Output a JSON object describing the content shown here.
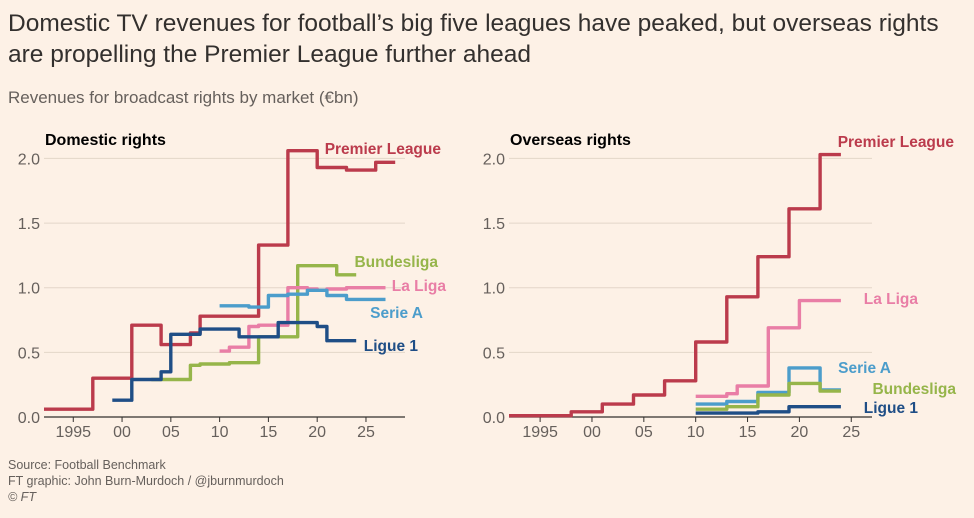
{
  "title": "Domestic TV revenues for football’s big five leagues have peaked, but overseas rights are propelling the Premier League further ahead",
  "subtitle": "Revenues for broadcast rights by market (€bn)",
  "footer": {
    "source": "Source: Football Benchmark",
    "credit": "FT graphic: John Burn-Murdoch / @jburnmurdoch",
    "copyright": "© FT"
  },
  "colors": {
    "Premier League": "#bb3b4c",
    "La Liga": "#e97ea6",
    "Bundesliga": "#96b54a",
    "Serie A": "#4c9dcb",
    "Ligue 1": "#1f4e86"
  },
  "chart_data": [
    {
      "type": "line",
      "title": "Domestic rights",
      "xlim": [
        1992,
        2029
      ],
      "ylim": [
        0,
        2.1
      ],
      "yticks": [
        0.0,
        0.5,
        1.0,
        1.5,
        2.0
      ],
      "ytick_labels": [
        "0.0",
        "0.5",
        "1.0",
        "1.5",
        "2.0"
      ],
      "xticks": [
        1995,
        2000,
        2005,
        2010,
        2015,
        2020,
        2025
      ],
      "xtick_labels": [
        "1995",
        "00",
        "05",
        "10",
        "15",
        "20",
        "25"
      ],
      "grid": true,
      "series": [
        {
          "name": "Premier League",
          "x": [
            1992,
            1993,
            1994,
            1995,
            1996,
            1997,
            1998,
            1999,
            2000,
            2001,
            2002,
            2003,
            2004,
            2005,
            2006,
            2007,
            2008,
            2009,
            2010,
            2011,
            2012,
            2013,
            2014,
            2015,
            2016,
            2017,
            2018,
            2019,
            2020,
            2021,
            2022,
            2023,
            2024,
            2025,
            2026,
            2027,
            2028
          ],
          "y": [
            0.06,
            0.06,
            0.06,
            0.06,
            0.06,
            0.3,
            0.3,
            0.3,
            0.3,
            0.71,
            0.71,
            0.71,
            0.56,
            0.56,
            0.56,
            0.65,
            0.78,
            0.78,
            0.78,
            0.78,
            0.78,
            0.78,
            1.33,
            1.33,
            1.33,
            2.06,
            2.06,
            2.06,
            1.93,
            1.93,
            1.93,
            1.91,
            1.91,
            1.91,
            1.97,
            1.97,
            1.97
          ]
        },
        {
          "name": "Bundesliga",
          "x": [
            2003,
            2004,
            2005,
            2006,
            2007,
            2008,
            2009,
            2010,
            2011,
            2012,
            2013,
            2014,
            2015,
            2016,
            2017,
            2018,
            2019,
            2020,
            2021,
            2022,
            2023,
            2024
          ],
          "y": [
            0.29,
            0.29,
            0.29,
            0.29,
            0.4,
            0.41,
            0.41,
            0.41,
            0.42,
            0.42,
            0.42,
            0.62,
            0.62,
            0.62,
            0.62,
            1.17,
            1.17,
            1.17,
            1.17,
            1.1,
            1.1,
            1.1
          ]
        },
        {
          "name": "La Liga",
          "x": [
            2010,
            2011,
            2012,
            2013,
            2014,
            2015,
            2016,
            2017,
            2018,
            2019,
            2020,
            2021,
            2022,
            2023,
            2024,
            2025,
            2026,
            2027
          ],
          "y": [
            0.51,
            0.54,
            0.54,
            0.7,
            0.71,
            0.71,
            0.71,
            1.0,
            1.0,
            0.99,
            0.98,
            0.99,
            0.99,
            1.0,
            1.0,
            1.0,
            1.0,
            1.0
          ]
        },
        {
          "name": "Serie A",
          "x": [
            2010,
            2011,
            2012,
            2013,
            2014,
            2015,
            2016,
            2017,
            2018,
            2019,
            2020,
            2021,
            2022,
            2023,
            2024,
            2025,
            2026,
            2027
          ],
          "y": [
            0.86,
            0.86,
            0.86,
            0.85,
            0.85,
            0.94,
            0.94,
            0.95,
            0.95,
            0.98,
            0.98,
            0.94,
            0.94,
            0.91,
            0.91,
            0.91,
            0.91,
            0.91
          ]
        },
        {
          "name": "Ligue 1",
          "x": [
            1999,
            2000,
            2001,
            2002,
            2003,
            2004,
            2005,
            2006,
            2007,
            2008,
            2009,
            2010,
            2011,
            2012,
            2013,
            2014,
            2015,
            2016,
            2017,
            2018,
            2019,
            2020,
            2021,
            2022,
            2023,
            2024
          ],
          "y": [
            0.13,
            0.13,
            0.29,
            0.29,
            0.29,
            0.35,
            0.64,
            0.64,
            0.64,
            0.68,
            0.68,
            0.68,
            0.68,
            0.62,
            0.62,
            0.62,
            0.62,
            0.73,
            0.73,
            0.73,
            0.73,
            0.7,
            0.59,
            0.59,
            0.59,
            0.59
          ]
        }
      ]
    },
    {
      "type": "line",
      "title": "Overseas rights",
      "xlim": [
        1992,
        2027
      ],
      "ylim": [
        0,
        2.1
      ],
      "yticks": [
        0.0,
        0.5,
        1.0,
        1.5,
        2.0
      ],
      "ytick_labels": [
        "0.0",
        "0.5",
        "1.0",
        "1.5",
        "2.0"
      ],
      "xticks": [
        1995,
        2000,
        2005,
        2010,
        2015,
        2020,
        2025
      ],
      "xtick_labels": [
        "1995",
        "00",
        "05",
        "10",
        "15",
        "20",
        "25"
      ],
      "grid": true,
      "series": [
        {
          "name": "Premier League",
          "x": [
            1992,
            1993,
            1994,
            1995,
            1996,
            1997,
            1998,
            1999,
            2000,
            2001,
            2002,
            2003,
            2004,
            2005,
            2006,
            2007,
            2008,
            2009,
            2010,
            2011,
            2012,
            2013,
            2014,
            2015,
            2016,
            2017,
            2018,
            2019,
            2020,
            2021,
            2022,
            2023,
            2024
          ],
          "y": [
            0.01,
            0.01,
            0.01,
            0.01,
            0.01,
            0.01,
            0.04,
            0.04,
            0.04,
            0.1,
            0.1,
            0.1,
            0.17,
            0.17,
            0.17,
            0.28,
            0.28,
            0.28,
            0.58,
            0.58,
            0.58,
            0.93,
            0.93,
            0.93,
            1.24,
            1.24,
            1.24,
            1.61,
            1.61,
            1.61,
            2.03,
            2.03,
            2.03
          ]
        },
        {
          "name": "La Liga",
          "x": [
            2010,
            2011,
            2012,
            2013,
            2014,
            2015,
            2016,
            2017,
            2018,
            2019,
            2020,
            2021,
            2022,
            2023,
            2024
          ],
          "y": [
            0.16,
            0.16,
            0.16,
            0.18,
            0.24,
            0.24,
            0.24,
            0.69,
            0.69,
            0.69,
            0.9,
            0.9,
            0.9,
            0.9,
            0.9
          ]
        },
        {
          "name": "Serie A",
          "x": [
            2010,
            2011,
            2012,
            2013,
            2014,
            2015,
            2016,
            2017,
            2018,
            2019,
            2020,
            2021,
            2022,
            2023,
            2024
          ],
          "y": [
            0.1,
            0.1,
            0.1,
            0.12,
            0.12,
            0.12,
            0.19,
            0.19,
            0.19,
            0.38,
            0.38,
            0.38,
            0.21,
            0.21,
            0.21
          ]
        },
        {
          "name": "Bundesliga",
          "x": [
            2010,
            2011,
            2012,
            2013,
            2014,
            2015,
            2016,
            2017,
            2018,
            2019,
            2020,
            2021,
            2022,
            2023,
            2024
          ],
          "y": [
            0.06,
            0.06,
            0.06,
            0.08,
            0.08,
            0.08,
            0.17,
            0.17,
            0.17,
            0.26,
            0.26,
            0.26,
            0.2,
            0.2,
            0.2
          ]
        },
        {
          "name": "Ligue 1",
          "x": [
            2010,
            2011,
            2012,
            2013,
            2014,
            2015,
            2016,
            2017,
            2018,
            2019,
            2020,
            2021,
            2022,
            2023,
            2024
          ],
          "y": [
            0.03,
            0.03,
            0.03,
            0.03,
            0.03,
            0.03,
            0.04,
            0.04,
            0.04,
            0.08,
            0.08,
            0.08,
            0.08,
            0.08,
            0.08
          ]
        }
      ]
    }
  ]
}
